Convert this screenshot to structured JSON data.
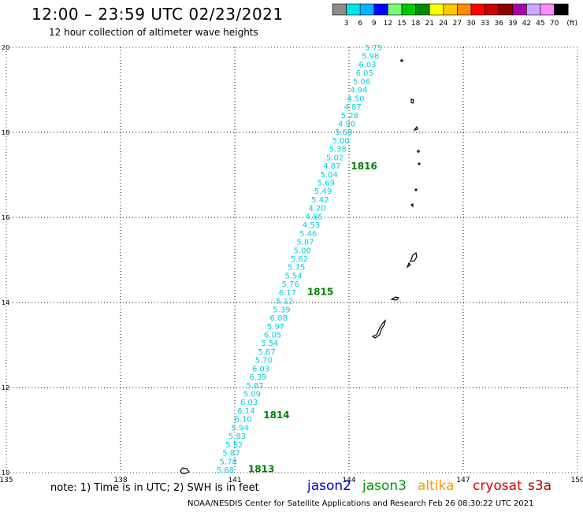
{
  "title": "12:00 – 23:59 UTC 02/23/2021",
  "subtitle": "12 hour collection of altimeter wave heights",
  "colorbar": {
    "labels": [
      "3",
      "6",
      "9",
      "12",
      "15",
      "18",
      "21",
      "24",
      "27",
      "30",
      "33",
      "36",
      "39",
      "42",
      "45",
      "70"
    ],
    "unit": "(ft)",
    "colors": [
      "#8c8c8c",
      "#00e5e5",
      "#00b4ff",
      "#0000ff",
      "#78ff78",
      "#00c800",
      "#008c00",
      "#ffff00",
      "#ffc800",
      "#ff8c00",
      "#ff0000",
      "#c80000",
      "#8c0000",
      "#aa00aa",
      "#c8aaff",
      "#ff8cff",
      "#000000"
    ]
  },
  "axes": {
    "x_ticks": [
      "135",
      "138",
      "141",
      "144",
      "147",
      "150"
    ],
    "y_ticks": [
      "20",
      "18",
      "16",
      "14",
      "12",
      "10"
    ]
  },
  "track": {
    "color": "#00d0e0",
    "values": [
      "5.75",
      "5.98",
      "6.03",
      "6.05",
      "5.06",
      "4.94",
      "4.50",
      "4.87",
      "5.28",
      "4.90",
      "5.69",
      "5.00",
      "5.38",
      "5.02",
      "4.87",
      "5.04",
      "5.69",
      "5.49",
      "5.42",
      "4.20",
      "4.85",
      "4.53",
      "5.46",
      "5.87",
      "5.00",
      "5.62",
      "5.75",
      "5.54",
      "5.76",
      "6.17",
      "5.12",
      "5.39",
      "6.08",
      "5.97",
      "6.05",
      "5.54",
      "5.67",
      "5.70",
      "6.03",
      "6.39",
      "5.87",
      "5.09",
      "6.03",
      "6.14",
      "6.10",
      "5.94",
      "5.83",
      "5.52",
      "5.87",
      "5.78",
      "5.68"
    ]
  },
  "pass_labels": [
    {
      "text": "1816",
      "lon": 144.05,
      "lat": 17.2
    },
    {
      "text": "1815",
      "lon": 142.9,
      "lat": 14.25
    },
    {
      "text": "1814",
      "lon": 141.75,
      "lat": 11.35
    },
    {
      "text": "1813",
      "lon": 141.35,
      "lat": 10.08
    }
  ],
  "note": "note: 1) Time is in UTC; 2) SWH is in feet",
  "satellites": [
    {
      "name": "jason2",
      "color": "#0000cc"
    },
    {
      "name": "jason3",
      "color": "#009900"
    },
    {
      "name": "altika",
      "color": "#ff9900"
    },
    {
      "name": "cryosat",
      "color": "#dd0000"
    },
    {
      "name": "s3a",
      "color": "#aa0000"
    }
  ],
  "credit": "NOAA/NESDIS Center for Satellite Applications and Research   Feb 26 08:30:22 UTC 2021"
}
